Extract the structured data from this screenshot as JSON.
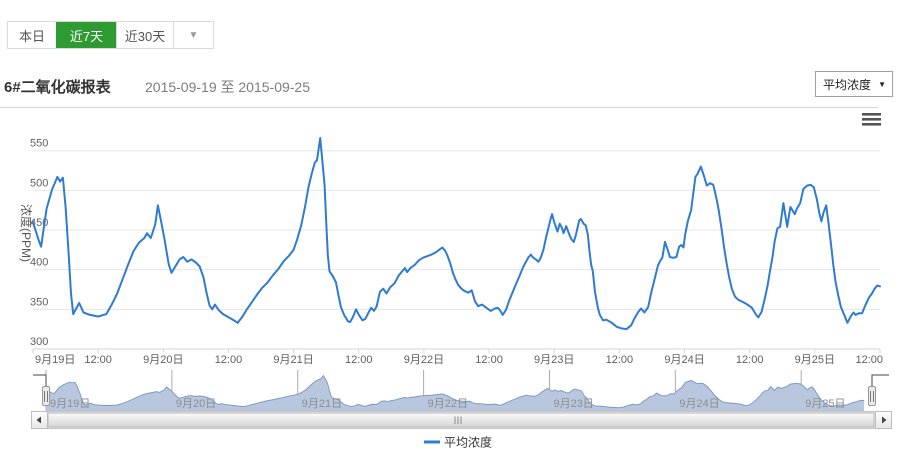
{
  "toolbar": {
    "today": "本日",
    "last7": "近7天",
    "last30": "近30天",
    "caret": "▼"
  },
  "header": {
    "title": "6#二氧化碳报表",
    "date_range": "2015-09-19 至 2015-09-25",
    "metric_select": "平均浓度",
    "select_caret": "▼"
  },
  "colors": {
    "accent_green": "#2e9b32",
    "series_blue": "#2f7bd3",
    "grid": "#e6e6e6",
    "axis_line": "#ccd6eb",
    "label_gray": "#606060",
    "nav_fill": "#b9c7de",
    "nav_line": "#7f9ac4",
    "nav_label": "#8c8c8c",
    "outline_dark": "#444444"
  },
  "chart_data": {
    "type": "line",
    "title": "",
    "ylabel": "浓度(PPM)",
    "unit": "PPM",
    "ylim": [
      300,
      575
    ],
    "y_ticks": [
      300,
      350,
      400,
      450,
      500,
      550
    ],
    "x_range_hours": [
      0,
      156
    ],
    "navigator_range_hours": [
      0,
      157.5
    ],
    "grid": true,
    "legend_position": "bottom-center",
    "x_axis_labels": [
      "9月19日",
      "12:00",
      "9月20日",
      "12:00",
      "9月21日",
      "12:00",
      "9月22日",
      "12:00",
      "9月23日",
      "12:00",
      "9月24日",
      "12:00",
      "9月25日",
      "12:00"
    ],
    "navigator_labels": [
      "9月19日",
      "9月20日",
      "9月21日",
      "9月22日",
      "9月23日",
      "9月24日",
      "9月25日"
    ],
    "series": [
      {
        "name": "平均浓度",
        "points": [
          [
            0,
            460
          ],
          [
            1,
            438
          ],
          [
            1.5,
            429
          ],
          [
            2.5,
            477
          ],
          [
            3.5,
            501
          ],
          [
            4.5,
            517
          ],
          [
            5,
            511
          ],
          [
            5.5,
            516
          ],
          [
            6,
            479
          ],
          [
            6.5,
            427
          ],
          [
            7,
            370
          ],
          [
            7.4,
            344
          ],
          [
            8.5,
            358
          ],
          [
            9.3,
            346
          ],
          [
            10.5,
            343
          ],
          [
            12,
            341
          ],
          [
            13.5,
            344
          ],
          [
            14.5,
            356
          ],
          [
            15.5,
            370
          ],
          [
            16.5,
            388
          ],
          [
            17.5,
            406
          ],
          [
            18.5,
            423
          ],
          [
            19.5,
            434
          ],
          [
            20.5,
            440
          ],
          [
            21,
            446
          ],
          [
            21.7,
            440
          ],
          [
            22.5,
            457
          ],
          [
            23,
            481
          ],
          [
            23.6,
            461
          ],
          [
            24.2,
            439
          ],
          [
            25,
            407
          ],
          [
            25.5,
            396
          ],
          [
            26.2,
            404
          ],
          [
            27,
            413
          ],
          [
            27.7,
            416
          ],
          [
            28.4,
            410
          ],
          [
            29.2,
            413
          ],
          [
            30,
            409
          ],
          [
            30.7,
            404
          ],
          [
            31.4,
            390
          ],
          [
            32,
            370
          ],
          [
            32.5,
            355
          ],
          [
            33,
            350
          ],
          [
            33.5,
            356
          ],
          [
            34.2,
            349
          ],
          [
            35,
            344
          ],
          [
            36,
            340
          ],
          [
            37,
            336
          ],
          [
            37.7,
            333
          ],
          [
            38.5,
            340
          ],
          [
            39.3,
            349
          ],
          [
            40.2,
            358
          ],
          [
            41.2,
            368
          ],
          [
            42.2,
            377
          ],
          [
            43.2,
            384
          ],
          [
            44.2,
            393
          ],
          [
            45.2,
            401
          ],
          [
            46.2,
            411
          ],
          [
            47.2,
            418
          ],
          [
            48,
            425
          ],
          [
            48.7,
            439
          ],
          [
            49.4,
            456
          ],
          [
            50.1,
            479
          ],
          [
            50.7,
            503
          ],
          [
            51.3,
            520
          ],
          [
            51.9,
            535
          ],
          [
            52.3,
            538
          ],
          [
            52.9,
            566
          ],
          [
            53.4,
            530
          ],
          [
            53.7,
            506
          ],
          [
            54,
            461
          ],
          [
            54.3,
            419
          ],
          [
            54.6,
            398
          ],
          [
            55.2,
            392
          ],
          [
            55.8,
            384
          ],
          [
            56.3,
            366
          ],
          [
            56.7,
            353
          ],
          [
            57.3,
            343
          ],
          [
            58,
            335
          ],
          [
            58.4,
            334
          ],
          [
            58.9,
            340
          ],
          [
            59.5,
            350
          ],
          [
            60.1,
            342
          ],
          [
            60.7,
            336
          ],
          [
            61.2,
            338
          ],
          [
            61.8,
            346
          ],
          [
            62.3,
            352
          ],
          [
            62.8,
            348
          ],
          [
            63.3,
            354
          ],
          [
            63.9,
            372
          ],
          [
            64.5,
            376
          ],
          [
            65.1,
            370
          ],
          [
            65.8,
            378
          ],
          [
            66.6,
            383
          ],
          [
            67.3,
            392
          ],
          [
            68,
            398
          ],
          [
            68.5,
            402
          ],
          [
            68.9,
            397
          ],
          [
            69.5,
            402
          ],
          [
            70.3,
            406
          ],
          [
            71.1,
            412
          ],
          [
            71.8,
            415
          ],
          [
            72.6,
            417
          ],
          [
            73.4,
            419
          ],
          [
            74.2,
            422
          ],
          [
            75,
            426
          ],
          [
            75.4,
            428
          ],
          [
            75.9,
            424
          ],
          [
            76.3,
            418
          ],
          [
            76.8,
            409
          ],
          [
            77.3,
            397
          ],
          [
            77.8,
            388
          ],
          [
            78.3,
            381
          ],
          [
            78.9,
            376
          ],
          [
            79.5,
            373
          ],
          [
            80.2,
            371
          ],
          [
            80.8,
            374
          ],
          [
            81.4,
            360
          ],
          [
            82,
            354
          ],
          [
            82.7,
            356
          ],
          [
            83.5,
            352
          ],
          [
            84.3,
            348
          ],
          [
            85.1,
            351
          ],
          [
            85.6,
            352
          ],
          [
            86,
            349
          ],
          [
            86.5,
            343
          ],
          [
            87.1,
            349
          ],
          [
            87.7,
            361
          ],
          [
            88.3,
            371
          ],
          [
            88.9,
            381
          ],
          [
            89.6,
            392
          ],
          [
            90.2,
            402
          ],
          [
            90.7,
            409
          ],
          [
            91.3,
            416
          ],
          [
            91.7,
            419
          ],
          [
            92,
            416
          ],
          [
            92.6,
            413
          ],
          [
            93.1,
            410
          ],
          [
            93.5,
            415
          ],
          [
            94,
            425
          ],
          [
            94.5,
            441
          ],
          [
            94.9,
            452
          ],
          [
            95.3,
            463
          ],
          [
            95.6,
            470
          ],
          [
            96,
            460
          ],
          [
            96.4,
            452
          ],
          [
            96.6,
            448
          ],
          [
            97,
            458
          ],
          [
            97.4,
            453
          ],
          [
            97.7,
            446
          ],
          [
            98.2,
            455
          ],
          [
            98.8,
            444
          ],
          [
            99.2,
            438
          ],
          [
            99.6,
            435
          ],
          [
            100,
            444
          ],
          [
            100.6,
            462
          ],
          [
            100.9,
            464
          ],
          [
            101.4,
            458
          ],
          [
            101.8,
            456
          ],
          [
            102.2,
            444
          ],
          [
            102.5,
            423
          ],
          [
            102.8,
            406
          ],
          [
            103.1,
            398
          ],
          [
            103.5,
            372
          ],
          [
            104,
            353
          ],
          [
            104.4,
            343
          ],
          [
            105,
            336
          ],
          [
            105.6,
            337
          ],
          [
            106.6,
            333
          ],
          [
            107.5,
            328
          ],
          [
            108.4,
            326
          ],
          [
            109.3,
            325
          ],
          [
            110.2,
            330
          ],
          [
            110.8,
            339
          ],
          [
            111.5,
            347
          ],
          [
            112,
            351
          ],
          [
            112.6,
            346
          ],
          [
            113.3,
            353
          ],
          [
            113.9,
            372
          ],
          [
            114.6,
            391
          ],
          [
            115.1,
            405
          ],
          [
            115.5,
            411
          ],
          [
            115.9,
            415
          ],
          [
            116.4,
            435
          ],
          [
            116.9,
            425
          ],
          [
            117.3,
            416
          ],
          [
            117.9,
            415
          ],
          [
            118.5,
            416
          ],
          [
            119,
            429
          ],
          [
            119.4,
            431
          ],
          [
            119.8,
            428
          ],
          [
            120.1,
            444
          ],
          [
            120.6,
            461
          ],
          [
            121.2,
            475
          ],
          [
            122,
            517
          ],
          [
            122.4,
            521
          ],
          [
            123,
            530
          ],
          [
            123.5,
            520
          ],
          [
            124.1,
            506
          ],
          [
            124.7,
            509
          ],
          [
            125.3,
            507
          ],
          [
            125.9,
            489
          ],
          [
            126.3,
            475
          ],
          [
            126.8,
            452
          ],
          [
            127.3,
            427
          ],
          [
            127.8,
            406
          ],
          [
            128.2,
            391
          ],
          [
            128.7,
            376
          ],
          [
            129.3,
            366
          ],
          [
            129.9,
            362
          ],
          [
            130.5,
            360
          ],
          [
            131.1,
            358
          ],
          [
            131.8,
            355
          ],
          [
            132.4,
            352
          ],
          [
            133.2,
            343
          ],
          [
            133.6,
            340
          ],
          [
            134.2,
            347
          ],
          [
            134.8,
            364
          ],
          [
            135.3,
            380
          ],
          [
            135.7,
            397
          ],
          [
            136.2,
            416
          ],
          [
            136.6,
            436
          ],
          [
            137.1,
            452
          ],
          [
            137.6,
            454
          ],
          [
            138.2,
            484
          ],
          [
            138.9,
            454
          ],
          [
            139.5,
            479
          ],
          [
            140.3,
            470
          ],
          [
            140.7,
            477
          ],
          [
            141.3,
            484
          ],
          [
            141.9,
            502
          ],
          [
            142.6,
            506
          ],
          [
            143.2,
            507
          ],
          [
            143.8,
            504
          ],
          [
            144.4,
            488
          ],
          [
            144.8,
            472
          ],
          [
            145.2,
            461
          ],
          [
            145.6,
            472
          ],
          [
            146.1,
            481
          ],
          [
            146.5,
            460
          ],
          [
            147,
            431
          ],
          [
            147.4,
            406
          ],
          [
            147.8,
            385
          ],
          [
            148.3,
            368
          ],
          [
            148.8,
            353
          ],
          [
            149.4,
            343
          ],
          [
            150,
            333
          ],
          [
            150.6,
            341
          ],
          [
            151.1,
            346
          ],
          [
            151.5,
            343
          ],
          [
            152.1,
            345
          ],
          [
            152.7,
            345
          ],
          [
            153.3,
            355
          ],
          [
            153.9,
            364
          ],
          [
            154.5,
            370
          ],
          [
            155,
            376
          ],
          [
            155.5,
            380
          ],
          [
            156,
            379
          ]
        ]
      }
    ]
  }
}
